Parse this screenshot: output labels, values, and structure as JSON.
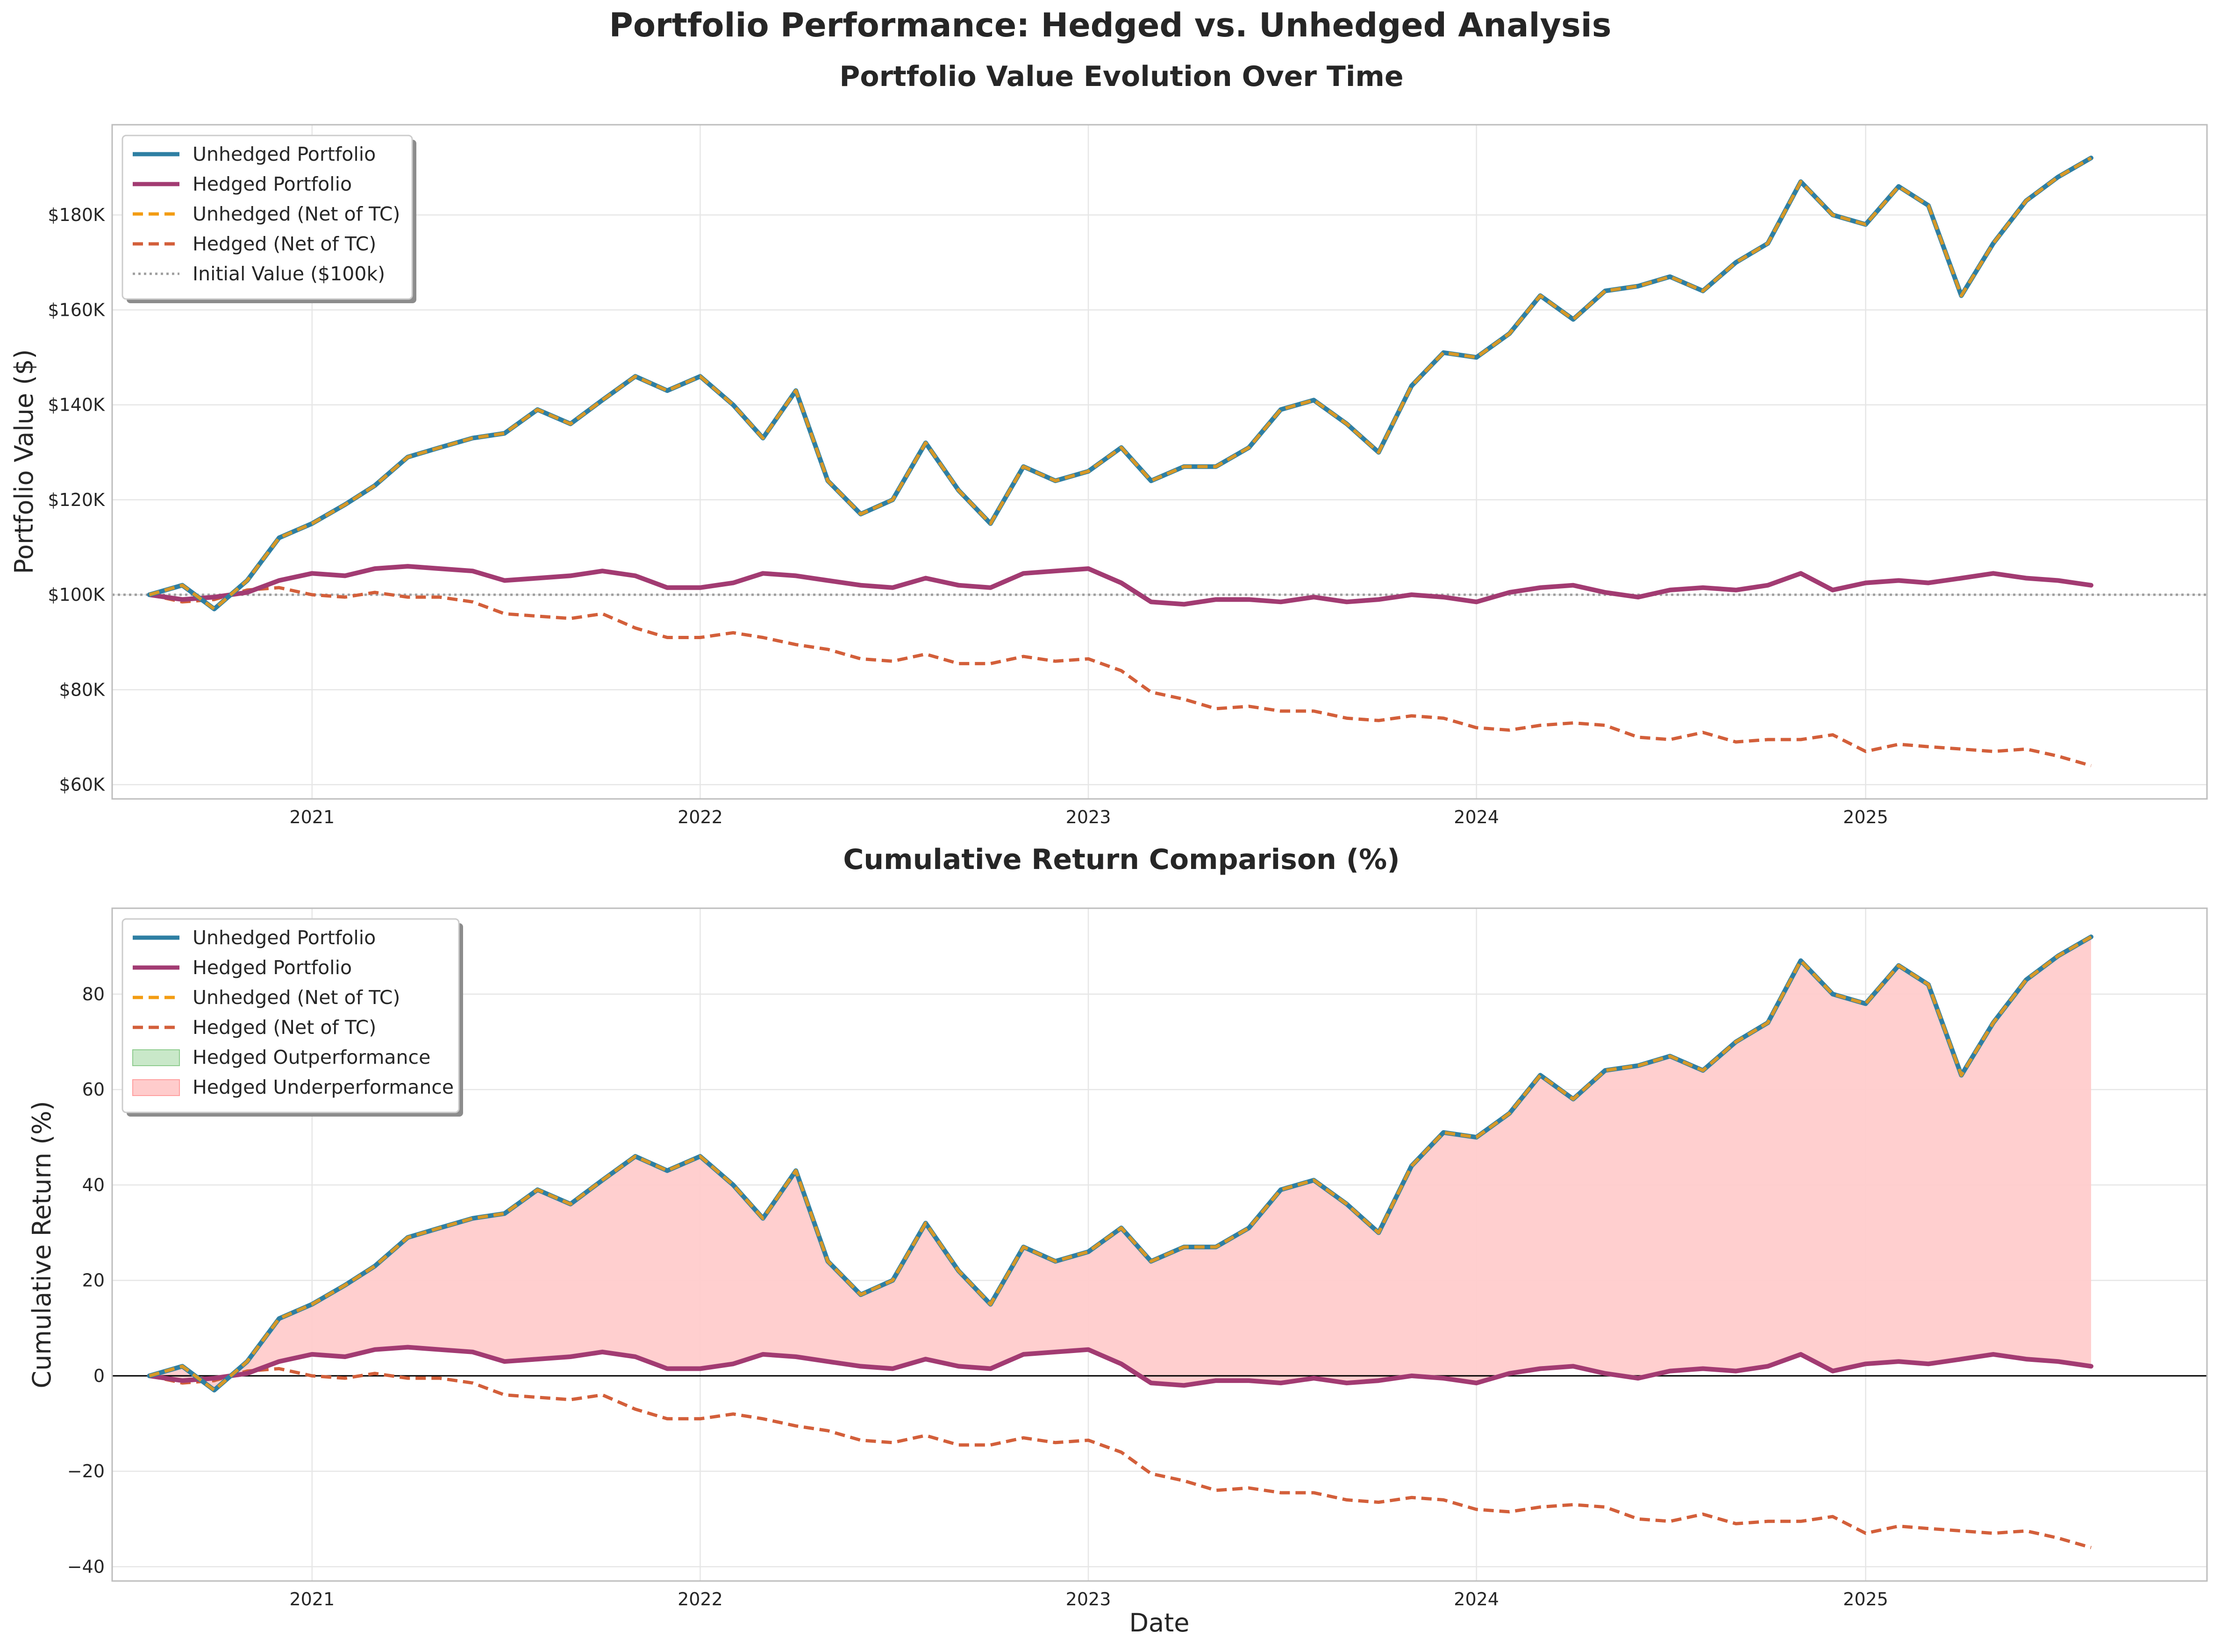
{
  "figure": {
    "suptitle": "Portfolio Performance: Hedged vs. Unhedged Analysis"
  },
  "colors": {
    "unhedged": "#2e7fa3",
    "hedged": "#a23b72",
    "unhedged_net": "#f39c12",
    "hedged_net": "#d35f3a",
    "initial": "#9e9e9e",
    "outperf_fill": "#c9e8c9",
    "underperf_fill": "#ffcccc"
  },
  "chart_data": [
    {
      "type": "line",
      "title": "Portfolio Value Evolution Over Time",
      "xlabel": "",
      "ylabel": "Portfolio Value ($)",
      "xlim": [
        "2020-06-27",
        "2025-11-18"
      ],
      "ylim": [
        57000,
        199000
      ],
      "x_ticks": [
        "2021-01-01",
        "2022-01-01",
        "2023-01-01",
        "2024-01-01",
        "2025-01-01"
      ],
      "x_tick_labels": [
        "2021",
        "2022",
        "2023",
        "2024",
        "2025"
      ],
      "y_ticks": [
        60000,
        80000,
        100000,
        120000,
        140000,
        160000,
        180000
      ],
      "y_tick_labels": [
        "$60K",
        "$80K",
        "$100K",
        "$120K",
        "$140K",
        "$160K",
        "$180K"
      ],
      "grid": true,
      "legend_position": "top-left",
      "legend": [
        "Unhedged Portfolio",
        "Hedged Portfolio",
        "Unhedged (Net of TC)",
        "Hedged (Net of TC)",
        "Initial Value ($100k)"
      ],
      "reference_line": {
        "name": "Initial Value ($100k)",
        "y": 100000
      },
      "x": [
        "2020-08-01",
        "2020-09-01",
        "2020-10-01",
        "2020-11-01",
        "2020-12-01",
        "2021-01-01",
        "2021-02-01",
        "2021-03-01",
        "2021-04-01",
        "2021-05-01",
        "2021-06-01",
        "2021-07-01",
        "2021-08-01",
        "2021-09-01",
        "2021-10-01",
        "2021-11-01",
        "2021-12-01",
        "2022-01-01",
        "2022-02-01",
        "2022-03-01",
        "2022-04-01",
        "2022-05-01",
        "2022-06-01",
        "2022-07-01",
        "2022-08-01",
        "2022-09-01",
        "2022-10-01",
        "2022-11-01",
        "2022-12-01",
        "2023-01-01",
        "2023-02-01",
        "2023-03-01",
        "2023-04-01",
        "2023-05-01",
        "2023-06-01",
        "2023-07-01",
        "2023-08-01",
        "2023-09-01",
        "2023-10-01",
        "2023-11-01",
        "2023-12-01",
        "2024-01-01",
        "2024-02-01",
        "2024-03-01",
        "2024-04-01",
        "2024-05-01",
        "2024-06-01",
        "2024-07-01",
        "2024-08-01",
        "2024-09-01",
        "2024-10-01",
        "2024-11-01",
        "2024-12-01",
        "2025-01-01",
        "2025-02-01",
        "2025-03-01",
        "2025-04-01",
        "2025-05-01",
        "2025-06-01",
        "2025-07-01",
        "2025-08-01"
      ],
      "series": [
        {
          "name": "Unhedged Portfolio",
          "values": [
            100000,
            102000,
            97000,
            103000,
            112000,
            115000,
            119000,
            123000,
            129000,
            131000,
            133000,
            134000,
            139000,
            136000,
            141000,
            146000,
            143000,
            146000,
            140000,
            133000,
            143000,
            124000,
            117000,
            120000,
            132000,
            122000,
            115000,
            127000,
            124000,
            126000,
            131000,
            124000,
            127000,
            127000,
            131000,
            139000,
            141000,
            136000,
            130000,
            144000,
            151000,
            150000,
            155000,
            163000,
            158000,
            164000,
            165000,
            167000,
            164000,
            170000,
            174000,
            187000,
            180000,
            178000,
            186000,
            182000,
            163000,
            174000,
            183000,
            188000,
            192000
          ]
        },
        {
          "name": "Hedged Portfolio",
          "values": [
            100000,
            99000,
            99500,
            100500,
            103000,
            104500,
            104000,
            105500,
            106000,
            105500,
            105000,
            103000,
            103500,
            104000,
            105000,
            104000,
            101500,
            101500,
            102500,
            104500,
            104000,
            103000,
            102000,
            101500,
            103500,
            102000,
            101500,
            104500,
            105000,
            105500,
            102500,
            98500,
            98000,
            99000,
            99000,
            98500,
            99500,
            98500,
            99000,
            100000,
            99500,
            98500,
            100500,
            101500,
            102000,
            100500,
            99500,
            101000,
            101500,
            101000,
            102000,
            104500,
            101000,
            102500,
            103000,
            102500,
            103500,
            104500,
            103500,
            103000,
            102000
          ]
        },
        {
          "name": "Unhedged (Net of TC)",
          "values": [
            100000,
            102000,
            97000,
            103000,
            112000,
            115000,
            119000,
            123000,
            129000,
            131000,
            133000,
            134000,
            139000,
            136000,
            141000,
            146000,
            143000,
            146000,
            140000,
            133000,
            143000,
            124000,
            117000,
            120000,
            132000,
            122000,
            115000,
            127000,
            124000,
            126000,
            131000,
            124000,
            127000,
            127000,
            131000,
            139000,
            141000,
            136000,
            130000,
            144000,
            151000,
            150000,
            155000,
            163000,
            158000,
            164000,
            165000,
            167000,
            164000,
            170000,
            174000,
            187000,
            180000,
            178000,
            186000,
            182000,
            163000,
            174000,
            183000,
            188000,
            192000
          ]
        },
        {
          "name": "Hedged (Net of TC)",
          "values": [
            100000,
            98500,
            99000,
            101000,
            101500,
            100000,
            99500,
            100500,
            99500,
            99500,
            98500,
            96000,
            95500,
            95000,
            96000,
            93000,
            91000,
            91000,
            92000,
            91000,
            89500,
            88500,
            86500,
            86000,
            87500,
            85500,
            85500,
            87000,
            86000,
            86500,
            84000,
            79500,
            78000,
            76000,
            76500,
            75500,
            75500,
            74000,
            73500,
            74500,
            74000,
            72000,
            71500,
            72500,
            73000,
            72500,
            70000,
            69500,
            71000,
            69000,
            69500,
            69500,
            70500,
            67000,
            68500,
            68000,
            67500,
            67000,
            67500,
            66000,
            64000
          ]
        }
      ]
    },
    {
      "type": "line",
      "title": "Cumulative Return Comparison (%)",
      "xlabel": "Date",
      "ylabel": "Cumulative Return (%)",
      "xlim": [
        "2020-06-27",
        "2025-11-18"
      ],
      "ylim": [
        -43,
        98
      ],
      "x_ticks": [
        "2021-01-01",
        "2022-01-01",
        "2023-01-01",
        "2024-01-01",
        "2025-01-01"
      ],
      "x_tick_labels": [
        "2021",
        "2022",
        "2023",
        "2024",
        "2025"
      ],
      "y_ticks": [
        -40,
        -20,
        0,
        20,
        40,
        60,
        80
      ],
      "y_tick_labels": [
        "−40",
        "−20",
        "0",
        "20",
        "40",
        "60",
        "80"
      ],
      "grid": true,
      "legend_position": "top-left",
      "legend": [
        "Unhedged Portfolio",
        "Hedged Portfolio",
        "Unhedged (Net of TC)",
        "Hedged (Net of TC)",
        "Hedged Outperformance",
        "Hedged Underperformance"
      ],
      "reference_line": {
        "y": 0
      },
      "x": [
        "2020-08-01",
        "2020-09-01",
        "2020-10-01",
        "2020-11-01",
        "2020-12-01",
        "2021-01-01",
        "2021-02-01",
        "2021-03-01",
        "2021-04-01",
        "2021-05-01",
        "2021-06-01",
        "2021-07-01",
        "2021-08-01",
        "2021-09-01",
        "2021-10-01",
        "2021-11-01",
        "2021-12-01",
        "2022-01-01",
        "2022-02-01",
        "2022-03-01",
        "2022-04-01",
        "2022-05-01",
        "2022-06-01",
        "2022-07-01",
        "2022-08-01",
        "2022-09-01",
        "2022-10-01",
        "2022-11-01",
        "2022-12-01",
        "2023-01-01",
        "2023-02-01",
        "2023-03-01",
        "2023-04-01",
        "2023-05-01",
        "2023-06-01",
        "2023-07-01",
        "2023-08-01",
        "2023-09-01",
        "2023-10-01",
        "2023-11-01",
        "2023-12-01",
        "2024-01-01",
        "2024-02-01",
        "2024-03-01",
        "2024-04-01",
        "2024-05-01",
        "2024-06-01",
        "2024-07-01",
        "2024-08-01",
        "2024-09-01",
        "2024-10-01",
        "2024-11-01",
        "2024-12-01",
        "2025-01-01",
        "2025-02-01",
        "2025-03-01",
        "2025-04-01",
        "2025-05-01",
        "2025-06-01",
        "2025-07-01",
        "2025-08-01"
      ],
      "series": [
        {
          "name": "Unhedged Portfolio",
          "values": [
            0,
            2,
            -3,
            3,
            12,
            15,
            19,
            23,
            29,
            31,
            33,
            34,
            39,
            36,
            41,
            46,
            43,
            46,
            40,
            33,
            43,
            24,
            17,
            20,
            32,
            22,
            15,
            27,
            24,
            26,
            31,
            24,
            27,
            27,
            31,
            39,
            41,
            36,
            30,
            44,
            51,
            50,
            55,
            63,
            58,
            64,
            65,
            67,
            64,
            70,
            74,
            87,
            80,
            78,
            86,
            82,
            63,
            74,
            83,
            88,
            92
          ]
        },
        {
          "name": "Hedged Portfolio",
          "values": [
            0,
            -1,
            -0.5,
            0.5,
            3,
            4.5,
            4,
            5.5,
            6,
            5.5,
            5,
            3,
            3.5,
            4,
            5,
            4,
            1.5,
            1.5,
            2.5,
            4.5,
            4,
            3,
            2,
            1.5,
            3.5,
            2,
            1.5,
            4.5,
            5,
            5.5,
            2.5,
            -1.5,
            -2,
            -1,
            -1,
            -1.5,
            -0.5,
            -1.5,
            -1,
            0,
            -0.5,
            -1.5,
            0.5,
            1.5,
            2,
            0.5,
            -0.5,
            1,
            1.5,
            1,
            2,
            4.5,
            1,
            2.5,
            3,
            2.5,
            3.5,
            4.5,
            3.5,
            3,
            2
          ]
        },
        {
          "name": "Unhedged (Net of TC)",
          "values": [
            0,
            2,
            -3,
            3,
            12,
            15,
            19,
            23,
            29,
            31,
            33,
            34,
            39,
            36,
            41,
            46,
            43,
            46,
            40,
            33,
            43,
            24,
            17,
            20,
            32,
            22,
            15,
            27,
            24,
            26,
            31,
            24,
            27,
            27,
            31,
            39,
            41,
            36,
            30,
            44,
            51,
            50,
            55,
            63,
            58,
            64,
            65,
            67,
            64,
            70,
            74,
            87,
            80,
            78,
            86,
            82,
            63,
            74,
            83,
            88,
            92
          ]
        },
        {
          "name": "Hedged (Net of TC)",
          "values": [
            0,
            -1.5,
            -1,
            1,
            1.5,
            0,
            -0.5,
            0.5,
            -0.5,
            -0.5,
            -1.5,
            -4,
            -4.5,
            -5,
            -4,
            -7,
            -9,
            -9,
            -8,
            -9,
            -10.5,
            -11.5,
            -13.5,
            -14,
            -12.5,
            -14.5,
            -14.5,
            -13,
            -14,
            -13.5,
            -16,
            -20.5,
            -22,
            -24,
            -23.5,
            -24.5,
            -24.5,
            -26,
            -26.5,
            -25.5,
            -26,
            -28,
            -28.5,
            -27.5,
            -27,
            -27.5,
            -30,
            -30.5,
            -29,
            -31,
            -30.5,
            -30.5,
            -29.5,
            -33,
            -31.5,
            -32,
            -32.5,
            -33,
            -32.5,
            -34,
            -36
          ]
        }
      ]
    }
  ]
}
